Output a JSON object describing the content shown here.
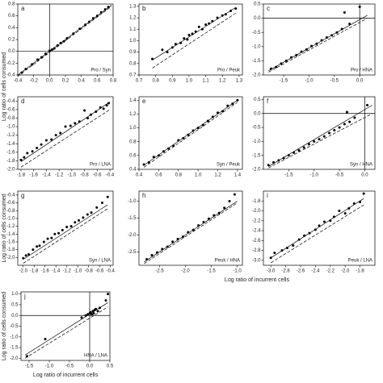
{
  "chart_data": [
    {
      "type": "scatter",
      "label": "a",
      "annotation": "Pro / Syn",
      "ylabel": "Log ratio of cells consumed",
      "zero_lines": true,
      "xlim": [
        -0.4,
        0.8
      ],
      "ylim": [
        -0.4,
        0.8
      ],
      "xticks": [
        -0.4,
        -0.2,
        {
          "value": 0,
          "label": "0.0"
        },
        0.2,
        0.4,
        0.6,
        0.8
      ],
      "yticks": [
        -0.4,
        -0.2,
        {
          "value": 0,
          "label": "0.0"
        },
        0.2,
        0.4,
        0.6,
        0.8
      ],
      "x": [
        -0.35,
        -0.3,
        -0.22,
        -0.15,
        -0.1,
        -0.05,
        0,
        0.03,
        0.06,
        0.1,
        0.14,
        0.18,
        0.22,
        0.3,
        0.38,
        0.45,
        0.5,
        0.55,
        0.6,
        0.65,
        0.7,
        0.74
      ],
      "y": [
        -0.36,
        -0.3,
        -0.22,
        -0.14,
        -0.1,
        -0.04,
        0.01,
        0.03,
        0.05,
        0.1,
        0.14,
        0.17,
        0.22,
        0.3,
        0.38,
        0.45,
        0.5,
        0.56,
        0.6,
        0.66,
        0.71,
        0.75
      ],
      "lines": [
        {
          "style": "solid",
          "x": [
            -0.4,
            0.78
          ],
          "y": [
            -0.4,
            0.78
          ]
        },
        {
          "style": "dashed",
          "x": [
            -0.4,
            0.78
          ],
          "y": [
            -0.42,
            0.76
          ]
        }
      ]
    },
    {
      "type": "scatter",
      "label": "b",
      "annotation": "Pro / Peuk",
      "zero_lines": false,
      "xlim": [
        0.7,
        1.32
      ],
      "ylim": [
        0.7,
        1.32
      ],
      "xticks": [
        0.7,
        0.8,
        0.9,
        {
          "value": 1,
          "label": "1.0"
        },
        1.1,
        1.2,
        1.3
      ],
      "yticks": [
        0.7,
        0.8,
        0.9,
        {
          "value": 1,
          "label": "1.0"
        },
        1.1,
        1.2,
        1.3
      ],
      "x": [
        0.78,
        0.84,
        0.87,
        0.9,
        0.92,
        0.95,
        0.97,
        0.99,
        1.0,
        1.02,
        1.04,
        1.06,
        1.08,
        1.1,
        1.12,
        1.14,
        1.17,
        1.2,
        1.22,
        1.25,
        1.28
      ],
      "y": [
        0.84,
        0.92,
        0.9,
        0.94,
        0.97,
        0.98,
        1.02,
        1.01,
        1.05,
        1.06,
        1.08,
        1.12,
        1.1,
        1.14,
        1.15,
        1.17,
        1.2,
        1.22,
        1.23,
        1.26,
        1.28
      ],
      "lines": [
        {
          "style": "solid",
          "x": [
            0.78,
            1.28
          ],
          "y": [
            0.83,
            1.29
          ]
        },
        {
          "style": "dashed",
          "x": [
            0.78,
            1.28
          ],
          "y": [
            0.76,
            1.24
          ]
        }
      ]
    },
    {
      "type": "scatter",
      "label": "c",
      "annotation": "Pro / HNA",
      "zero_lines": true,
      "xlim": [
        -1.9,
        0.3
      ],
      "ylim": [
        -2.0,
        0.5
      ],
      "xticks": [
        -1.5,
        {
          "value": -1,
          "label": "-1.0"
        },
        -0.5,
        {
          "value": 0,
          "label": "0.0"
        }
      ],
      "yticks": [
        {
          "value": -2,
          "label": "-2.0"
        },
        -1.5,
        {
          "value": -1,
          "label": "-1.0"
        },
        -0.5,
        {
          "value": 0,
          "label": "0.0"
        },
        0.5
      ],
      "x": [
        -1.75,
        -1.65,
        -1.55,
        -1.45,
        -1.35,
        -1.25,
        -1.15,
        -1.05,
        -0.95,
        -0.85,
        -0.75,
        -0.65,
        -0.55,
        -0.45,
        -0.35,
        -0.2,
        -0.3,
        0
      ],
      "y": [
        -1.78,
        -1.72,
        -1.6,
        -1.5,
        -1.38,
        -1.3,
        -1.18,
        -1.1,
        -0.98,
        -0.9,
        -0.78,
        -0.68,
        -0.6,
        -0.5,
        -0.38,
        -0.2,
        0.2,
        0.4
      ],
      "lines": [
        {
          "style": "solid",
          "x": [
            -1.8,
            0.15
          ],
          "y": [
            -1.85,
            0.1
          ]
        },
        {
          "style": "dashed",
          "x": [
            -1.8,
            0.15
          ],
          "y": [
            -1.9,
            0
          ]
        }
      ]
    },
    {
      "type": "scatter",
      "label": "d",
      "annotation": "Pro / LNA",
      "zero_lines": false,
      "xlim": [
        -1.85,
        -0.35
      ],
      "ylim": [
        -2.0,
        -0.3
      ],
      "xticks": [
        -1.8,
        -1.6,
        -1.4,
        -1.2,
        {
          "value": -1,
          "label": "-1.0"
        },
        -0.8,
        -0.6,
        -0.4
      ],
      "yticks": [
        {
          "value": -2,
          "label": "-2.0"
        },
        -1.8,
        -1.6,
        -1.4,
        -1.2,
        {
          "value": -1,
          "label": "-1.0"
        },
        -0.8,
        -0.6,
        -0.4
      ],
      "x": [
        -1.8,
        -1.75,
        -1.7,
        -1.62,
        -1.55,
        -1.48,
        -1.4,
        -1.32,
        -1.25,
        -1.18,
        -1.1,
        -1.02,
        -0.95,
        -0.88,
        -0.8,
        -0.75,
        -0.7,
        -0.62,
        -0.55,
        -0.5,
        -0.45,
        -0.42
      ],
      "y": [
        -1.78,
        -1.72,
        -1.62,
        -1.58,
        -1.5,
        -1.42,
        -1.32,
        -1.3,
        -1.2,
        -1.15,
        -1.0,
        -0.98,
        -0.92,
        -0.88,
        -0.62,
        -0.8,
        -0.72,
        -0.65,
        -0.55,
        -0.58,
        -0.5,
        -0.45
      ],
      "lines": [
        {
          "style": "solid",
          "x": [
            -1.8,
            -0.4
          ],
          "y": [
            -1.82,
            -0.42
          ]
        },
        {
          "style": "dashed",
          "x": [
            -1.8,
            -0.4
          ],
          "y": [
            -1.95,
            -0.6
          ]
        }
      ]
    },
    {
      "type": "scatter",
      "label": "e",
      "annotation": "Syn / Peuk",
      "zero_lines": false,
      "xlim": [
        0.4,
        1.45
      ],
      "ylim": [
        0.4,
        1.45
      ],
      "xticks": [
        0.4,
        0.6,
        0.8,
        {
          "value": 1,
          "label": "1.0"
        },
        1.2,
        1.4
      ],
      "yticks": [
        0.4,
        0.6,
        0.8,
        {
          "value": 1,
          "label": "1.0"
        },
        1.2,
        1.4
      ],
      "x": [
        0.45,
        0.5,
        0.55,
        0.6,
        0.65,
        0.7,
        0.75,
        0.8,
        0.85,
        0.9,
        0.95,
        1.0,
        1.05,
        1.1,
        1.15,
        1.2,
        1.25,
        1.3,
        1.35,
        1.4
      ],
      "y": [
        0.47,
        0.5,
        0.58,
        0.6,
        0.66,
        0.7,
        0.74,
        0.82,
        0.85,
        0.9,
        0.96,
        1.0,
        1.04,
        1.1,
        1.16,
        1.22,
        1.24,
        1.32,
        1.35,
        1.4
      ],
      "lines": [
        {
          "style": "solid",
          "x": [
            0.45,
            1.4
          ],
          "y": [
            0.46,
            1.4
          ]
        },
        {
          "style": "dashed",
          "x": [
            0.45,
            1.4
          ],
          "y": [
            0.43,
            1.37
          ]
        }
      ]
    },
    {
      "type": "scatter",
      "label": "f",
      "annotation": "Syn / HNA",
      "zero_lines": true,
      "xlim": [
        -2.0,
        0.2
      ],
      "ylim": [
        -2.0,
        0.6
      ],
      "xticks": [
        -1.5,
        {
          "value": -1,
          "label": "-1.0"
        },
        -0.5,
        {
          "value": 0,
          "label": "0.0"
        }
      ],
      "yticks": [
        {
          "value": -2,
          "label": "-2.0"
        },
        -1.5,
        {
          "value": -1,
          "label": "-1.0"
        },
        -0.5,
        {
          "value": 0,
          "label": "0.0"
        },
        0.5
      ],
      "x": [
        -1.9,
        -1.8,
        -1.7,
        -1.6,
        -1.5,
        -1.4,
        -1.3,
        -1.2,
        -1.1,
        -1.0,
        -0.9,
        -0.8,
        -0.7,
        -0.6,
        -0.5,
        -0.4,
        -0.3,
        -0.2,
        -0.35,
        0.05
      ],
      "y": [
        -1.85,
        -1.75,
        -1.68,
        -1.6,
        -1.5,
        -1.4,
        -1.32,
        -1.22,
        -1.1,
        -1.0,
        -0.92,
        -0.82,
        -0.7,
        -0.6,
        -0.5,
        -0.38,
        -0.3,
        -0.15,
        0.05,
        0.3
      ],
      "lines": [
        {
          "style": "solid",
          "x": [
            -1.9,
            0.15
          ],
          "y": [
            -1.9,
            0.3
          ]
        },
        {
          "style": "dashed",
          "x": [
            -1.9,
            0.15
          ],
          "y": [
            -1.95,
            0
          ]
        }
      ]
    },
    {
      "type": "scatter",
      "label": "g",
      "annotation": "Syn / LNA",
      "ylabel": "Log ratio of cells consumed",
      "zero_lines": false,
      "xlim": [
        -2.1,
        -0.35
      ],
      "ylim": [
        -2.2,
        -0.3
      ],
      "xticks": [
        {
          "value": -2,
          "label": "-2.0"
        },
        -1.8,
        -1.6,
        -1.4,
        -1.2,
        {
          "value": -1,
          "label": "-1.0"
        },
        -0.8,
        -0.6,
        -0.4
      ],
      "yticks": [
        {
          "value": -2,
          "label": "-2.0"
        },
        -1.8,
        -1.6,
        -1.4,
        -1.2,
        {
          "value": -1,
          "label": "-1.0"
        },
        -0.8,
        -0.6,
        -0.4
      ],
      "x": [
        -2.0,
        -1.95,
        -1.9,
        -1.82,
        -1.75,
        -1.7,
        -1.62,
        -1.55,
        -1.48,
        -1.42,
        -1.35,
        -1.28,
        -1.2,
        -1.12,
        -1.05,
        -0.98,
        -0.9,
        -0.82,
        -0.75,
        -0.65,
        -0.55,
        -0.45
      ],
      "y": [
        -2.02,
        -1.95,
        -1.92,
        -1.8,
        -1.72,
        -1.7,
        -1.6,
        -1.52,
        -1.5,
        -1.4,
        -1.38,
        -1.3,
        -1.22,
        -1.2,
        -1.1,
        -1.05,
        -0.98,
        -0.9,
        -0.85,
        -0.72,
        -0.6,
        -0.45
      ],
      "lines": [
        {
          "style": "solid",
          "x": [
            -2.0,
            -0.45
          ],
          "y": [
            -2.05,
            -0.65
          ]
        },
        {
          "style": "dashed",
          "x": [
            -2.0,
            -0.45
          ],
          "y": [
            -2.15,
            -0.75
          ]
        }
      ]
    },
    {
      "type": "scatter",
      "label": "h",
      "annotation": "Peuk / HNA",
      "xlabel": "Log ratio of incurrent cells",
      "zero_lines": false,
      "xlim": [
        -2.9,
        -0.9
      ],
      "ylim": [
        -2.9,
        -0.7
      ],
      "xticks": [
        -2.5,
        {
          "value": -2,
          "label": "-2.0"
        },
        -1.5,
        {
          "value": -1,
          "label": "-1.0"
        }
      ],
      "yticks": [
        -2.5,
        {
          "value": -2,
          "label": "-2.0"
        },
        -1.5,
        {
          "value": -1,
          "label": "-1.0"
        }
      ],
      "x": [
        -2.75,
        -2.65,
        -2.55,
        -2.45,
        -2.35,
        -2.25,
        -2.15,
        -2.05,
        -1.95,
        -1.85,
        -1.75,
        -1.65,
        -1.55,
        -1.45,
        -1.35,
        -1.25,
        -1.15,
        -1.05
      ],
      "y": [
        -2.72,
        -2.6,
        -2.52,
        -2.42,
        -2.35,
        -2.2,
        -2.12,
        -2.05,
        -1.92,
        -1.85,
        -1.72,
        -1.62,
        -1.52,
        -1.42,
        -1.35,
        -1.2,
        -1.0,
        -0.8
      ],
      "lines": [
        {
          "style": "solid",
          "x": [
            -2.8,
            -1.0
          ],
          "y": [
            -2.8,
            -1.0
          ]
        },
        {
          "style": "dashed",
          "x": [
            -2.8,
            -1.0
          ],
          "y": [
            -2.85,
            -1.05
          ]
        }
      ]
    },
    {
      "type": "scatter",
      "label": "i",
      "annotation": "Peuk / LNA",
      "zero_lines": false,
      "xlim": [
        -3.1,
        -1.6
      ],
      "ylim": [
        -3.1,
        -1.6
      ],
      "xticks": [
        {
          "value": -3,
          "label": "-3.0"
        },
        -2.8,
        -2.6,
        -2.4,
        -2.2,
        {
          "value": -2,
          "label": "-2.0"
        },
        -1.8
      ],
      "yticks": [
        {
          "value": -3,
          "label": "-3.0"
        },
        -2.8,
        -2.6,
        -2.4,
        -2.2,
        {
          "value": -2,
          "label": "-2.0"
        },
        -1.8
      ],
      "x": [
        -3.0,
        -2.95,
        -2.85,
        -2.78,
        -2.7,
        -2.62,
        -2.55,
        -2.48,
        -2.4,
        -2.35,
        -2.28,
        -2.2,
        -2.15,
        -2.08,
        -2.0,
        -1.95,
        -1.88,
        -1.8,
        -1.75
      ],
      "y": [
        -2.95,
        -2.85,
        -2.8,
        -2.75,
        -2.7,
        -2.58,
        -2.5,
        -2.45,
        -2.38,
        -2.3,
        -2.22,
        -2.2,
        -2.12,
        -2.0,
        -2.05,
        -1.95,
        -1.85,
        -1.82,
        -1.65
      ],
      "lines": [
        {
          "style": "solid",
          "x": [
            -3.0,
            -1.75
          ],
          "y": [
            -2.95,
            -1.75
          ]
        },
        {
          "style": "dashed",
          "x": [
            -3.0,
            -1.75
          ],
          "y": [
            -3.05,
            -1.88
          ]
        }
      ]
    },
    {
      "type": "scatter",
      "label": "j",
      "annotation": "HNA / LNA",
      "ylabel": "Log ratio of cells consumed",
      "xlabel": "Log ratio of incurrent cells",
      "zero_lines": true,
      "xlim": [
        -1.7,
        0.5
      ],
      "ylim": [
        -2.1,
        1.1
      ],
      "xticks": [
        -1.5,
        {
          "value": -1,
          "label": "-1.0"
        },
        -0.5,
        {
          "value": 0,
          "label": "0.0"
        },
        0.5
      ],
      "yticks": [
        {
          "value": -2,
          "label": "-2.0"
        },
        -1.5,
        {
          "value": -1,
          "label": "-1.0"
        },
        -0.5,
        {
          "value": 0,
          "label": "0.0"
        },
        0.5,
        {
          "value": 1,
          "label": "1.0"
        }
      ],
      "x": [
        -1.55,
        -1.1,
        -0.2,
        -0.1,
        -0.05,
        0,
        0.02,
        0.05,
        0.08,
        0.1,
        0.12,
        0.15,
        0.2,
        0.25,
        0.4,
        0.45
      ],
      "y": [
        -1.9,
        -1.1,
        -0.1,
        0,
        0.05,
        0.1,
        0.15,
        0.05,
        0.2,
        0.1,
        0.25,
        0.3,
        0.2,
        0.35,
        0.7,
        1.0
      ],
      "lines": [
        {
          "style": "solid",
          "x": [
            -1.6,
            0.45
          ],
          "y": [
            -1.85,
            0.6
          ]
        },
        {
          "style": "dashed",
          "x": [
            -1.6,
            0.45
          ],
          "y": [
            -2.0,
            0.4
          ]
        }
      ]
    }
  ]
}
